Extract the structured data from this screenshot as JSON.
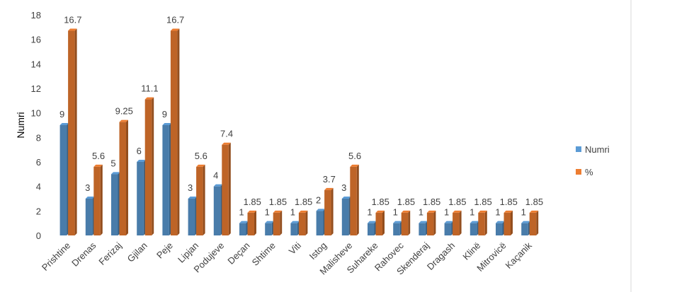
{
  "chart_data": {
    "type": "bar",
    "ylabel": "Numri",
    "xlabel": "",
    "ylim": [
      0,
      18
    ],
    "yticks": [
      0,
      2,
      4,
      6,
      8,
      10,
      12,
      14,
      16,
      18
    ],
    "grid": false,
    "legend_position": "right",
    "categories": [
      "Prishtine",
      "Drenas",
      "Ferizaj",
      "Gjilan",
      "Peje",
      "Lipjan",
      "Podujeve",
      "Deçan",
      "Shtime",
      "Viti",
      "Istog",
      "Malisheve",
      "Suhareke",
      "Rahovec",
      "Skenderaj",
      "Dragash",
      "Klinë",
      "Mitrovicë",
      "Kaçanik"
    ],
    "series": [
      {
        "name": "Numri",
        "color": "#5B9BD5",
        "values": [
          9,
          3,
          5,
          6,
          9,
          3,
          4,
          1,
          1,
          1,
          2,
          3,
          1,
          1,
          1,
          1,
          1,
          1,
          1
        ],
        "labels": [
          "9",
          "3",
          "5",
          "6",
          "9",
          "3",
          "4",
          "1",
          "1",
          "1",
          "2",
          "3",
          "1",
          "1",
          "1",
          "1",
          "1",
          "1",
          "1"
        ]
      },
      {
        "name": "%",
        "color": "#ED7D31",
        "values": [
          16.7,
          5.6,
          9.25,
          11.1,
          16.7,
          5.6,
          7.4,
          1.85,
          1.85,
          1.85,
          3.7,
          5.6,
          1.85,
          1.85,
          1.85,
          1.85,
          1.85,
          1.85,
          1.85
        ],
        "labels": [
          "16.7",
          "5.6",
          "9.25",
          "11.1",
          "16.7",
          "5.6",
          "7.4",
          "1.85",
          "1.85",
          "1.85",
          "3.7",
          "5.6",
          "1.85",
          "1.85",
          "1.85",
          "1.85",
          "1.85",
          "1.85",
          "1.85"
        ]
      }
    ]
  }
}
